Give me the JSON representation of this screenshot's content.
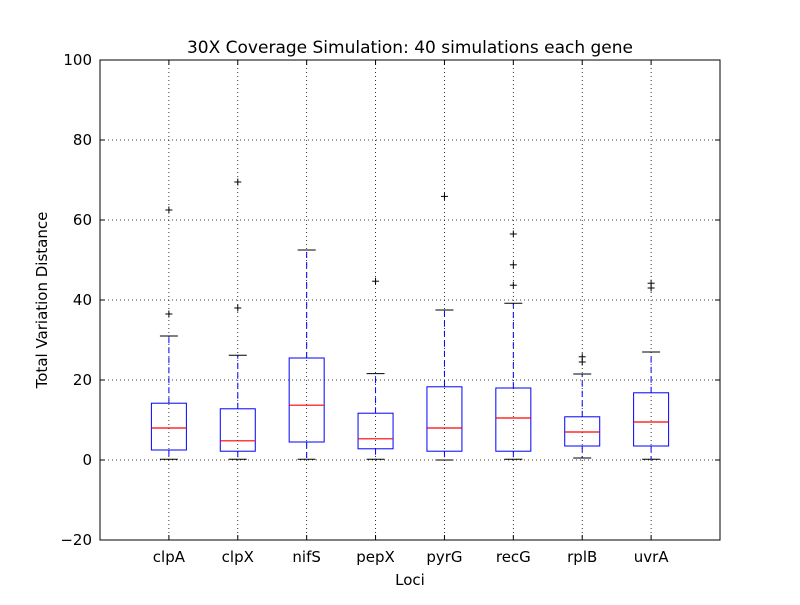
{
  "chart_data": {
    "type": "boxplot",
    "title": "30X Coverage Simulation: 40 simulations each gene",
    "xlabel": "Loci",
    "ylabel": "Total Variation Distance",
    "ylim": [
      -20,
      100
    ],
    "yticks": [
      -20,
      0,
      20,
      40,
      60,
      80,
      100
    ],
    "ytick_labels": [
      "−20",
      "0",
      "20",
      "40",
      "60",
      "80",
      "100"
    ],
    "grid": true,
    "categories": [
      "clpA",
      "clpX",
      "nifS",
      "pepX",
      "pyrG",
      "recG",
      "rplB",
      "uvrA"
    ],
    "boxes": [
      {
        "whisker_low": 0.2,
        "q1": 2.5,
        "median": 8.0,
        "q3": 14.2,
        "whisker_high": 31.0,
        "outliers": [
          36.5,
          62.5
        ]
      },
      {
        "whisker_low": 0.2,
        "q1": 2.2,
        "median": 4.8,
        "q3": 12.8,
        "whisker_high": 26.2,
        "outliers": [
          38.0,
          69.5
        ]
      },
      {
        "whisker_low": 0.2,
        "q1": 4.5,
        "median": 13.7,
        "q3": 25.5,
        "whisker_high": 52.5,
        "outliers": []
      },
      {
        "whisker_low": 0.2,
        "q1": 2.8,
        "median": 5.3,
        "q3": 11.7,
        "whisker_high": 21.6,
        "outliers": [
          44.7
        ]
      },
      {
        "whisker_low": 0.0,
        "q1": 2.2,
        "median": 8.0,
        "q3": 18.3,
        "whisker_high": 37.5,
        "outliers": [
          65.9
        ]
      },
      {
        "whisker_low": 0.2,
        "q1": 2.2,
        "median": 10.5,
        "q3": 18.0,
        "whisker_high": 39.2,
        "outliers": [
          43.7,
          48.8,
          56.5
        ]
      },
      {
        "whisker_low": 0.5,
        "q1": 3.5,
        "median": 7.0,
        "q3": 10.8,
        "whisker_high": 21.5,
        "outliers": [
          24.5,
          25.8
        ]
      },
      {
        "whisker_low": 0.2,
        "q1": 3.5,
        "median": 9.5,
        "q3": 16.8,
        "whisker_high": 27.0,
        "outliers": [
          43.0,
          44.2
        ]
      }
    ],
    "colors": {
      "box": "#0000ff",
      "whisker": "#0000ff",
      "cap": "#000000",
      "median": "#ff0000",
      "outlier": "#000000",
      "grid": "#000000"
    }
  }
}
